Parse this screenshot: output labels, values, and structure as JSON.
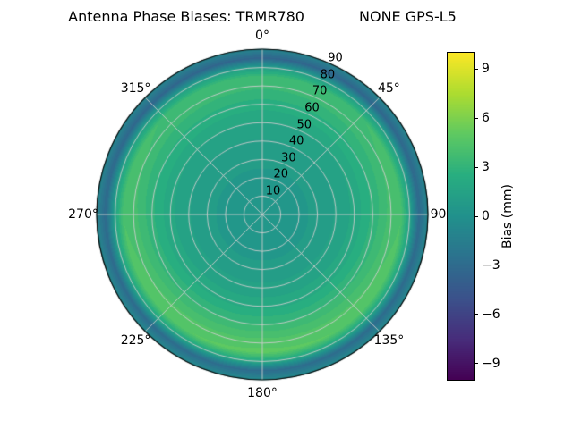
{
  "chart_data": {
    "type": "heatmap",
    "projection": "polar",
    "title": "Antenna Phase Biases: TRMR780            NONE GPS-L5",
    "grid": true,
    "theta_ticks": [
      {
        "angle_deg": 0,
        "label": "0°"
      },
      {
        "angle_deg": 45,
        "label": "45°"
      },
      {
        "angle_deg": 90,
        "label": "90°"
      },
      {
        "angle_deg": 135,
        "label": "135°"
      },
      {
        "angle_deg": 180,
        "label": "180°"
      },
      {
        "angle_deg": 225,
        "label": "225°"
      },
      {
        "angle_deg": 270,
        "label": "270°"
      },
      {
        "angle_deg": 315,
        "label": "315°"
      }
    ],
    "r_ticks": [
      {
        "r": 10,
        "label": "10"
      },
      {
        "r": 20,
        "label": "20"
      },
      {
        "r": 30,
        "label": "30"
      },
      {
        "r": 40,
        "label": "40"
      },
      {
        "r": 50,
        "label": "50"
      },
      {
        "r": 60,
        "label": "60"
      },
      {
        "r": 70,
        "label": "70"
      },
      {
        "r": 80,
        "label": "80"
      },
      {
        "r": 90,
        "label": "90"
      }
    ],
    "r_max": 90,
    "colorbar": {
      "label": "Bias (mm)",
      "clim": [
        -10,
        10
      ],
      "colormap": "viridis",
      "colormap_stops": [
        "#440154",
        "#472d7b",
        "#3b528b",
        "#2c728e",
        "#21918c",
        "#28ae80",
        "#5ec962",
        "#addc30",
        "#fde725"
      ],
      "ticks": [
        {
          "value": 9,
          "label": "9"
        },
        {
          "value": 6,
          "label": "6"
        },
        {
          "value": 3,
          "label": "3"
        },
        {
          "value": 0,
          "label": "0"
        },
        {
          "value": -3,
          "label": "−3"
        },
        {
          "value": -6,
          "label": "−6"
        },
        {
          "value": -9,
          "label": "−9"
        }
      ]
    },
    "azimuth_deg": [
      0,
      45,
      90,
      135,
      180,
      225,
      270,
      315
    ],
    "zenith_deg": [
      0,
      10,
      20,
      30,
      40,
      50,
      60,
      70,
      75,
      80,
      85,
      90
    ],
    "bias_mm": [
      [
        0.3,
        0.3,
        0.3,
        0.3,
        0.3,
        0.3,
        0.3,
        0.3
      ],
      [
        0.4,
        0.4,
        0.4,
        0.4,
        0.4,
        0.4,
        0.4,
        0.4
      ],
      [
        0.6,
        0.6,
        0.6,
        0.6,
        0.6,
        0.6,
        0.6,
        0.6
      ],
      [
        0.9,
        0.9,
        0.9,
        0.9,
        0.9,
        0.9,
        0.9,
        0.9
      ],
      [
        1.2,
        1.23,
        1.3,
        1.37,
        1.4,
        1.37,
        1.3,
        1.23
      ],
      [
        1.7,
        1.76,
        1.9,
        2.04,
        2.1,
        2.04,
        1.9,
        1.76
      ],
      [
        2.5,
        2.62,
        2.9,
        3.18,
        3.3,
        3.18,
        2.9,
        2.62
      ],
      [
        3.4,
        3.58,
        4.0,
        4.42,
        4.6,
        4.42,
        4.0,
        3.58
      ],
      [
        3.5,
        3.71,
        4.2,
        4.69,
        4.9,
        4.69,
        4.2,
        3.71
      ],
      [
        1.1,
        1.22,
        1.5,
        1.78,
        1.9,
        1.78,
        1.5,
        1.22
      ],
      [
        -3.5,
        -3.41,
        -3.2,
        -2.99,
        -2.9,
        -2.99,
        -3.2,
        -3.41
      ],
      [
        -1.0,
        -0.94,
        -0.8,
        -0.66,
        -0.6,
        -0.66,
        -0.8,
        -0.94
      ]
    ]
  }
}
